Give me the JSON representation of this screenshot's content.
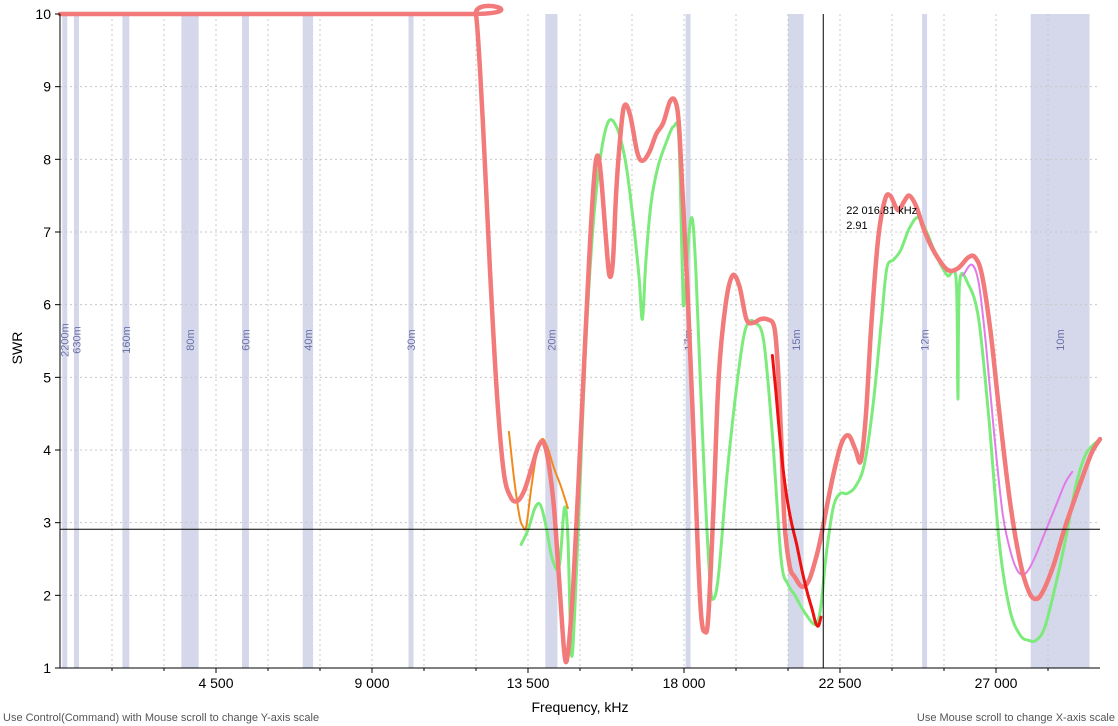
{
  "status": {
    "left_hint": "Use Control(Command) with Mouse scroll to change Y-axis scale",
    "right_hint": "Use Mouse scroll to change X-axis scale"
  },
  "colors": {
    "band_fill": "#d5d8ea",
    "band_label": "#6a70a8",
    "grid": "#c8c8c8",
    "cursor": "#000000",
    "series_main": "#f27a7a",
    "series_green": "#7ceb7c",
    "series_orange": "#f08a1c",
    "series_red": "#ee1111",
    "series_violet": "#e27ae8"
  },
  "chart_data": {
    "type": "line",
    "xlabel": "Frequency, kHz",
    "ylabel": "SWR",
    "xlim": [
      0,
      30000
    ],
    "ylim": [
      1,
      10
    ],
    "x_ticks": [
      4500,
      9000,
      13500,
      18000,
      22500,
      27000
    ],
    "x_tick_labels": [
      "4 500",
      "9 000",
      "13 500",
      "18 000",
      "22 500",
      "27 000"
    ],
    "y_ticks": [
      1,
      2,
      3,
      4,
      5,
      6,
      7,
      8,
      9,
      10
    ],
    "x_minor_step": 1500,
    "grid": true,
    "bands": [
      {
        "label": "2200m",
        "start": 136,
        "end": 137
      },
      {
        "label": "630m",
        "start": 472,
        "end": 479
      },
      {
        "label": "160m",
        "start": 1800,
        "end": 2000
      },
      {
        "label": "80m",
        "start": 3500,
        "end": 4000
      },
      {
        "label": "60m",
        "start": 5250,
        "end": 5450
      },
      {
        "label": "40m",
        "start": 7000,
        "end": 7300
      },
      {
        "label": "30m",
        "start": 10100,
        "end": 10150
      },
      {
        "label": "20m",
        "start": 14000,
        "end": 14350
      },
      {
        "label": "17m",
        "start": 18068,
        "end": 18168
      },
      {
        "label": "15m",
        "start": 21000,
        "end": 21450
      },
      {
        "label": "12m",
        "start": 24890,
        "end": 24990
      },
      {
        "label": "10m",
        "start": 28000,
        "end": 29700
      }
    ],
    "cursor": {
      "x": 22016.81,
      "y": 2.91,
      "freq_label": "22 016.81 kHz",
      "value_label": "2.91"
    },
    "series": [
      {
        "color": "#f27a7a",
        "points": [
          [
            0,
            10
          ],
          [
            11800,
            10
          ],
          [
            12000,
            10
          ],
          [
            12200,
            8.5
          ],
          [
            12400,
            6.5
          ],
          [
            12600,
            4.8
          ],
          [
            12800,
            3.7
          ],
          [
            13000,
            3.35
          ],
          [
            13200,
            3.3
          ],
          [
            13400,
            3.45
          ],
          [
            13600,
            3.75
          ],
          [
            13800,
            4.05
          ],
          [
            13950,
            4.1
          ],
          [
            14100,
            3.8
          ],
          [
            14250,
            3.2
          ],
          [
            14400,
            2.2
          ],
          [
            14550,
            1.2
          ],
          [
            14650,
            1.2
          ],
          [
            14800,
            2.1
          ],
          [
            14950,
            3.5
          ],
          [
            15100,
            5.0
          ],
          [
            15250,
            6.5
          ],
          [
            15400,
            7.7
          ],
          [
            15500,
            8.05
          ],
          [
            15600,
            7.8
          ],
          [
            15750,
            6.9
          ],
          [
            15850,
            6.4
          ],
          [
            15950,
            6.6
          ],
          [
            16050,
            7.6
          ],
          [
            16200,
            8.5
          ],
          [
            16300,
            8.75
          ],
          [
            16450,
            8.6
          ],
          [
            16650,
            8.1
          ],
          [
            16800,
            7.98
          ],
          [
            17000,
            8.1
          ],
          [
            17200,
            8.35
          ],
          [
            17400,
            8.5
          ],
          [
            17600,
            8.8
          ],
          [
            17750,
            8.8
          ],
          [
            17850,
            8.5
          ],
          [
            17950,
            7.6
          ],
          [
            18100,
            6.2
          ],
          [
            18250,
            4.5
          ],
          [
            18400,
            2.6
          ],
          [
            18500,
            1.7
          ],
          [
            18600,
            1.5
          ],
          [
            18700,
            1.7
          ],
          [
            18850,
            3.2
          ],
          [
            19000,
            5.0
          ],
          [
            19200,
            6.0
          ],
          [
            19400,
            6.4
          ],
          [
            19600,
            6.25
          ],
          [
            19800,
            5.8
          ],
          [
            20000,
            5.75
          ],
          [
            20200,
            5.8
          ],
          [
            20400,
            5.8
          ],
          [
            20600,
            5.7
          ],
          [
            20700,
            5.2
          ],
          [
            20800,
            4.2
          ],
          [
            20900,
            3.0
          ],
          [
            21050,
            2.4
          ],
          [
            21200,
            2.25
          ],
          [
            21400,
            2.12
          ],
          [
            21600,
            2.2
          ],
          [
            21800,
            2.5
          ],
          [
            21950,
            2.8
          ],
          [
            22150,
            3.3
          ],
          [
            22350,
            3.75
          ],
          [
            22550,
            4.1
          ],
          [
            22750,
            4.2
          ],
          [
            22950,
            4.0
          ],
          [
            23100,
            3.85
          ],
          [
            23250,
            4.5
          ],
          [
            23400,
            5.7
          ],
          [
            23600,
            6.9
          ],
          [
            23800,
            7.45
          ],
          [
            23950,
            7.5
          ],
          [
            24100,
            7.35
          ],
          [
            24200,
            7.3
          ],
          [
            24350,
            7.42
          ],
          [
            24500,
            7.5
          ],
          [
            24700,
            7.35
          ],
          [
            24950,
            7.0
          ],
          [
            25250,
            6.7
          ],
          [
            25600,
            6.48
          ],
          [
            25900,
            6.5
          ],
          [
            26200,
            6.65
          ],
          [
            26400,
            6.65
          ],
          [
            26600,
            6.4
          ],
          [
            26850,
            5.6
          ],
          [
            27100,
            4.5
          ],
          [
            27400,
            3.3
          ],
          [
            27700,
            2.45
          ],
          [
            27950,
            2.05
          ],
          [
            28150,
            1.95
          ],
          [
            28350,
            2.05
          ],
          [
            28650,
            2.4
          ],
          [
            29000,
            2.95
          ],
          [
            29400,
            3.5
          ],
          [
            29750,
            3.95
          ],
          [
            30000,
            4.15
          ]
        ]
      },
      {
        "color": "#7ceb7c",
        "points": [
          [
            13300,
            2.7
          ],
          [
            13500,
            2.9
          ],
          [
            13700,
            3.2
          ],
          [
            13850,
            3.25
          ],
          [
            14000,
            3.0
          ],
          [
            14200,
            2.5
          ],
          [
            14400,
            2.4
          ],
          [
            14550,
            3.2
          ],
          [
            14650,
            2.8
          ],
          [
            14750,
            1.2
          ],
          [
            14850,
            1.8
          ],
          [
            15000,
            3.5
          ],
          [
            15150,
            5.3
          ],
          [
            15350,
            6.9
          ],
          [
            15550,
            7.9
          ],
          [
            15800,
            8.5
          ],
          [
            16050,
            8.45
          ],
          [
            16300,
            8.0
          ],
          [
            16500,
            7.3
          ],
          [
            16700,
            6.4
          ],
          [
            16800,
            5.8
          ],
          [
            16900,
            6.6
          ],
          [
            17050,
            7.4
          ],
          [
            17250,
            7.9
          ],
          [
            17500,
            8.25
          ],
          [
            17700,
            8.45
          ],
          [
            17850,
            8.3
          ],
          [
            17950,
            6.5
          ],
          [
            18000,
            6.0
          ],
          [
            18150,
            7.0
          ],
          [
            18250,
            7.15
          ],
          [
            18350,
            6.4
          ],
          [
            18450,
            5.2
          ],
          [
            18600,
            3.5
          ],
          [
            18750,
            2.2
          ],
          [
            18850,
            1.95
          ],
          [
            19000,
            2.3
          ],
          [
            19250,
            3.7
          ],
          [
            19500,
            4.8
          ],
          [
            19700,
            5.5
          ],
          [
            19850,
            5.75
          ],
          [
            20050,
            5.75
          ],
          [
            20300,
            5.5
          ],
          [
            20550,
            4.2
          ],
          [
            20800,
            2.5
          ],
          [
            21000,
            2.15
          ],
          [
            21200,
            2.0
          ],
          [
            21500,
            1.75
          ],
          [
            21800,
            1.6
          ],
          [
            21950,
            1.85
          ],
          [
            22100,
            2.55
          ],
          [
            22300,
            3.2
          ],
          [
            22500,
            3.4
          ],
          [
            22700,
            3.4
          ],
          [
            22950,
            3.5
          ],
          [
            23200,
            3.8
          ],
          [
            23450,
            4.6
          ],
          [
            23700,
            5.8
          ],
          [
            23850,
            6.5
          ],
          [
            24050,
            6.62
          ],
          [
            24250,
            6.75
          ],
          [
            24500,
            7.05
          ],
          [
            24750,
            7.2
          ],
          [
            25000,
            7.0
          ],
          [
            25300,
            6.65
          ],
          [
            25600,
            6.4
          ],
          [
            25850,
            6.35
          ],
          [
            25900,
            4.7
          ],
          [
            25950,
            6.3
          ],
          [
            26200,
            6.28
          ],
          [
            26500,
            5.8
          ],
          [
            26800,
            4.4
          ],
          [
            27100,
            2.7
          ],
          [
            27400,
            1.8
          ],
          [
            27700,
            1.45
          ],
          [
            27950,
            1.38
          ],
          [
            28150,
            1.38
          ],
          [
            28400,
            1.55
          ],
          [
            28700,
            2.1
          ],
          [
            29000,
            2.75
          ],
          [
            29300,
            3.5
          ],
          [
            29600,
            3.95
          ],
          [
            30000,
            4.15
          ]
        ]
      },
      {
        "color": "#f08a1c",
        "points": [
          [
            12950,
            4.25
          ],
          [
            13100,
            3.6
          ],
          [
            13250,
            3.1
          ],
          [
            13350,
            2.95
          ],
          [
            13450,
            2.95
          ],
          [
            13600,
            3.5
          ],
          [
            13750,
            3.95
          ],
          [
            13900,
            4.15
          ],
          [
            14050,
            4.05
          ],
          [
            14250,
            3.75
          ],
          [
            14450,
            3.5
          ],
          [
            14650,
            3.2
          ]
        ]
      },
      {
        "color": "#ee1111",
        "points": [
          [
            20550,
            5.3
          ],
          [
            20650,
            4.8
          ],
          [
            20800,
            4.0
          ],
          [
            20950,
            3.4
          ],
          [
            21100,
            3.0
          ],
          [
            21250,
            2.7
          ],
          [
            21400,
            2.35
          ],
          [
            21550,
            2.05
          ],
          [
            21700,
            1.8
          ],
          [
            21800,
            1.62
          ],
          [
            21880,
            1.58
          ],
          [
            21950,
            1.7
          ]
        ]
      },
      {
        "color": "#e27ae8",
        "points": [
          [
            26050,
            6.4
          ],
          [
            26300,
            6.55
          ],
          [
            26500,
            6.3
          ],
          [
            26700,
            5.5
          ],
          [
            26950,
            4.2
          ],
          [
            27200,
            3.1
          ],
          [
            27450,
            2.55
          ],
          [
            27650,
            2.32
          ],
          [
            27850,
            2.3
          ],
          [
            28100,
            2.5
          ],
          [
            28400,
            2.85
          ],
          [
            28700,
            3.2
          ],
          [
            29000,
            3.55
          ],
          [
            29200,
            3.7
          ]
        ]
      }
    ]
  }
}
